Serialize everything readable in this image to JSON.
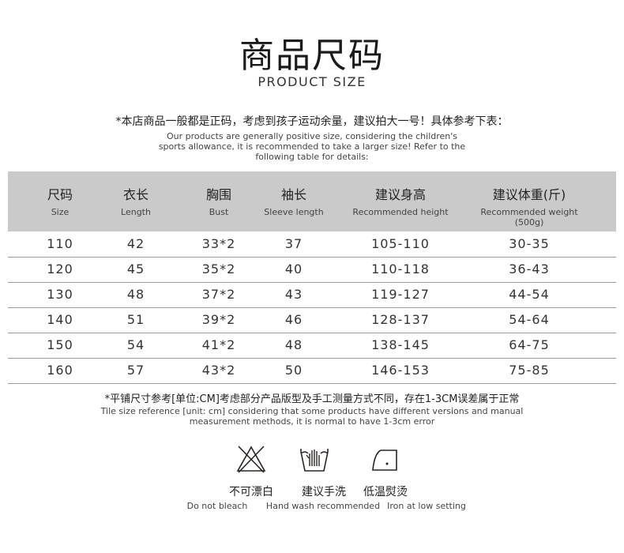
{
  "header": {
    "title": "商品尺码",
    "subtitle": "PRODUCT SIZE"
  },
  "intro": {
    "cn": "*本店商品一般都是正码，考虑到孩子运动余量，建议拍大一号！具体参考下表：",
    "en": "Our products are generally positive size, considering the children's sports allowance, it is recommended to take a larger size! Refer to the following table for details:"
  },
  "table": {
    "columns": [
      {
        "cn": "尺码",
        "en": "Size"
      },
      {
        "cn": "衣长",
        "en": "Length"
      },
      {
        "cn": "胸围",
        "en": "Bust"
      },
      {
        "cn": "袖长",
        "en": "Sleeve length"
      },
      {
        "cn": "建议身高",
        "en": "Recommended height"
      },
      {
        "cn": "建议体重(斤)",
        "en": "Recommended weight",
        "en2": "(500g)"
      }
    ],
    "rows": [
      [
        "110",
        "42",
        "33*2",
        "37",
        "105-110",
        "30-35"
      ],
      [
        "120",
        "45",
        "35*2",
        "40",
        "110-118",
        "36-43"
      ],
      [
        "130",
        "48",
        "37*2",
        "43",
        "119-127",
        "44-54"
      ],
      [
        "140",
        "51",
        "39*2",
        "46",
        "128-137",
        "54-64"
      ],
      [
        "150",
        "54",
        "41*2",
        "48",
        "138-145",
        "64-75"
      ],
      [
        "160",
        "57",
        "43*2",
        "50",
        "146-153",
        "75-85"
      ]
    ],
    "header_bg": "#c9cac9"
  },
  "footnote": {
    "cn": "*平铺尺寸参考[单位:CM]考虑部分产品版型及手工测量方式不同，存在1-3CM误差属于正常",
    "en": "Tile size reference [unit: cm] considering that some products have different versions and manual measurement methods, it is normal to have 1-3cm error"
  },
  "care": [
    {
      "icon": "no-bleach-icon",
      "cn": "不可漂白",
      "en": "Do not bleach"
    },
    {
      "icon": "hand-wash-icon",
      "cn": "建议手洗",
      "en": "Hand wash recommended"
    },
    {
      "icon": "iron-low-icon",
      "cn": "低温熨烫",
      "en": "Iron at low setting"
    }
  ]
}
